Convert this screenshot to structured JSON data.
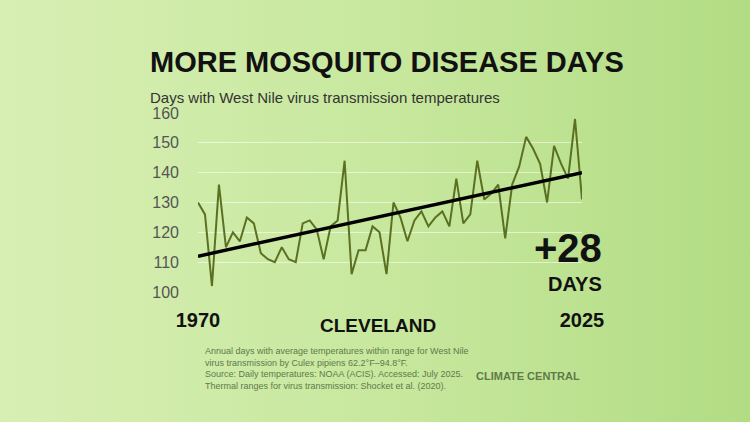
{
  "chart_data": {
    "type": "line",
    "title": "MORE MOSQUITO DISEASE DAYS",
    "subtitle": "Days with West Nile virus transmission temperatures",
    "x": [
      1970,
      1971,
      1972,
      1973,
      1974,
      1975,
      1976,
      1977,
      1978,
      1979,
      1980,
      1981,
      1982,
      1983,
      1984,
      1985,
      1986,
      1987,
      1988,
      1989,
      1990,
      1991,
      1992,
      1993,
      1994,
      1995,
      1996,
      1997,
      1998,
      1999,
      2000,
      2001,
      2002,
      2003,
      2004,
      2005,
      2006,
      2007,
      2008,
      2009,
      2010,
      2011,
      2012,
      2013,
      2014,
      2015,
      2016,
      2017,
      2018,
      2019,
      2020,
      2021,
      2022,
      2023,
      2024,
      2025
    ],
    "values": [
      130,
      126,
      102,
      136,
      115,
      120,
      117,
      125,
      123,
      113,
      111,
      110,
      115,
      111,
      110,
      123,
      124,
      121,
      111,
      122,
      124,
      144,
      106,
      114,
      114,
      122,
      120,
      106,
      130,
      125,
      117,
      124,
      127,
      122,
      125,
      127,
      122,
      138,
      123,
      126,
      144,
      131,
      133,
      136,
      118,
      136,
      142,
      152,
      148,
      143,
      130,
      149,
      143,
      138,
      158,
      131
    ],
    "color": "#5b7020",
    "trend": {
      "x": [
        1970,
        2025
      ],
      "values": [
        112,
        140
      ],
      "color": "#000000"
    },
    "xlim": [
      1970,
      2025
    ],
    "xticks": [
      1970,
      2025
    ],
    "ylim": [
      100,
      160
    ],
    "yticks": [
      100,
      110,
      120,
      130,
      140,
      150,
      160
    ],
    "grid": true,
    "location_label": "CLEVELAND",
    "change_label": "+28",
    "change_unit": "DAYS",
    "footnote": [
      "Annual days with average temperatures within range for West Nile",
      "virus transmission by Culex pipiens 62.2°F–94.8°F.",
      "Source: Daily temperatures: NOAA (ACIS). Accessed: July 2025.",
      "Thermal ranges for virus transmission: Shocket et al. (2020)."
    ],
    "credit": "CLIMATE CENTRAL"
  }
}
